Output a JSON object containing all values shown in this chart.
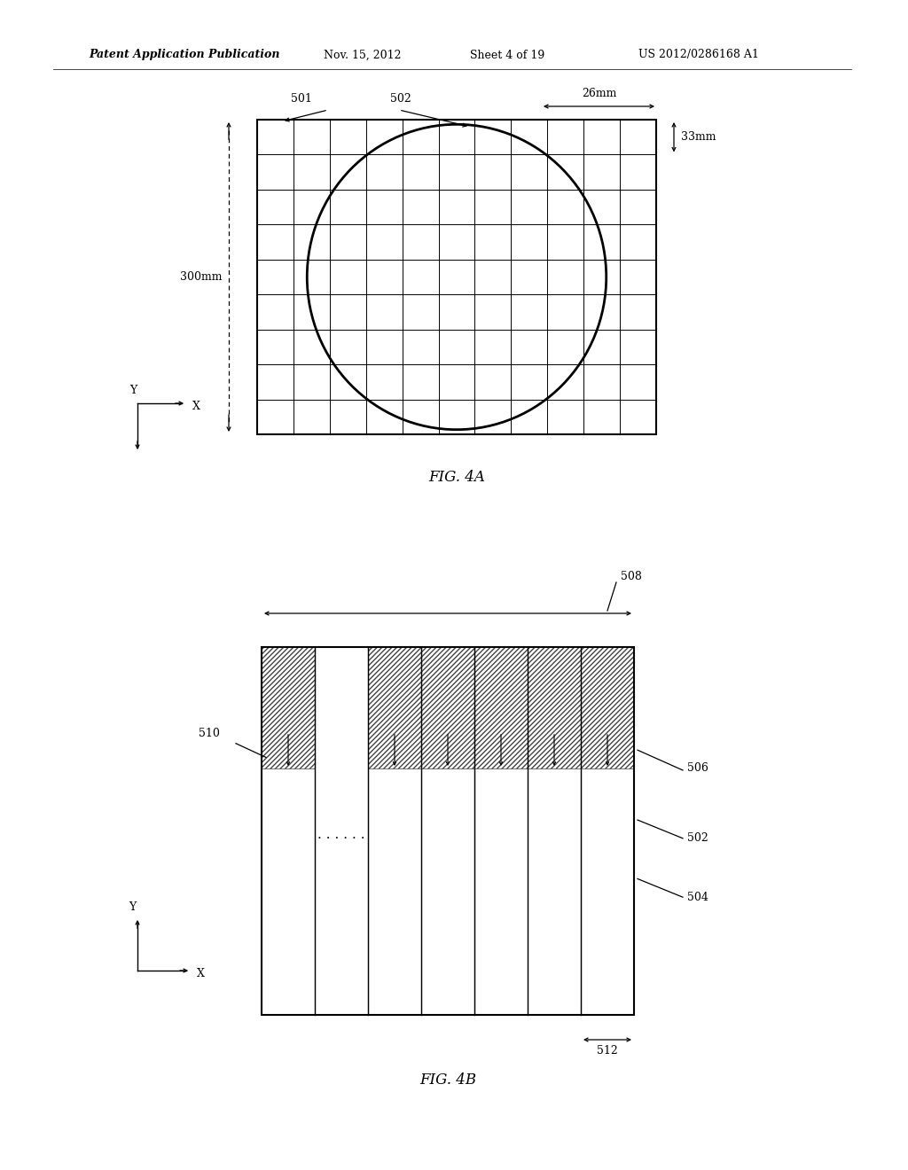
{
  "bg_color": "#ffffff",
  "header_text": "Patent Application Publication",
  "header_date": "Nov. 15, 2012",
  "header_sheet": "Sheet 4 of 19",
  "header_patent": "US 2012/0286168 A1",
  "fig4a_title": "FIG. 4A",
  "fig4b_title": "FIG. 4B",
  "label_501": "501",
  "label_502a": "502",
  "label_26mm": "26mm",
  "label_33mm": "33mm",
  "label_300mm": "300mm",
  "label_508": "508",
  "label_510": "510",
  "label_506": "506",
  "label_502b": "502",
  "label_504": "504",
  "label_512": "512",
  "line_color": "#000000",
  "grid_lw": 0.7,
  "border_lw": 1.5,
  "circle_lw": 2.0
}
